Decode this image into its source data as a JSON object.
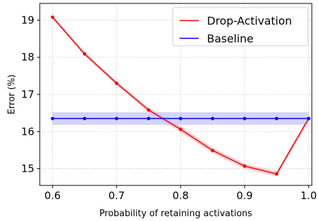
{
  "chart_data": {
    "type": "line",
    "xlabel": "Probability of retaining activations",
    "ylabel": "Error (%)",
    "xlim": [
      0.58,
      1.005
    ],
    "ylim": [
      14.55,
      19.45
    ],
    "x_ticks": [
      0.6,
      0.7,
      0.8,
      0.9,
      1.0
    ],
    "x_tick_labels": [
      "0.6",
      "0.7",
      "0.8",
      "0.9",
      "1.0"
    ],
    "y_ticks": [
      15,
      16,
      17,
      18,
      19
    ],
    "y_tick_labels": [
      "15",
      "16",
      "17",
      "18",
      "19"
    ],
    "grid": true,
    "legend_position": "top-right",
    "x": [
      0.6,
      0.65,
      0.7,
      0.75,
      0.8,
      0.85,
      0.9,
      0.95,
      1.0
    ],
    "series": [
      {
        "name": "Drop-Activation",
        "color": "#ff0000",
        "band_color": "#f4a6b0",
        "values": [
          19.08,
          18.09,
          17.3,
          16.58,
          16.06,
          15.49,
          15.07,
          14.86,
          16.35
        ],
        "band": [
          0.05,
          0.05,
          0.05,
          0.06,
          0.08,
          0.07,
          0.07,
          0.07,
          0.06
        ]
      },
      {
        "name": "Baseline",
        "color": "#0000ff",
        "band_color": "#b3b3f5",
        "values": [
          16.35,
          16.35,
          16.35,
          16.35,
          16.35,
          16.35,
          16.35,
          16.35,
          16.35
        ],
        "band": [
          0.17,
          0.17,
          0.17,
          0.17,
          0.17,
          0.17,
          0.17,
          0.17,
          0.17
        ]
      }
    ]
  }
}
